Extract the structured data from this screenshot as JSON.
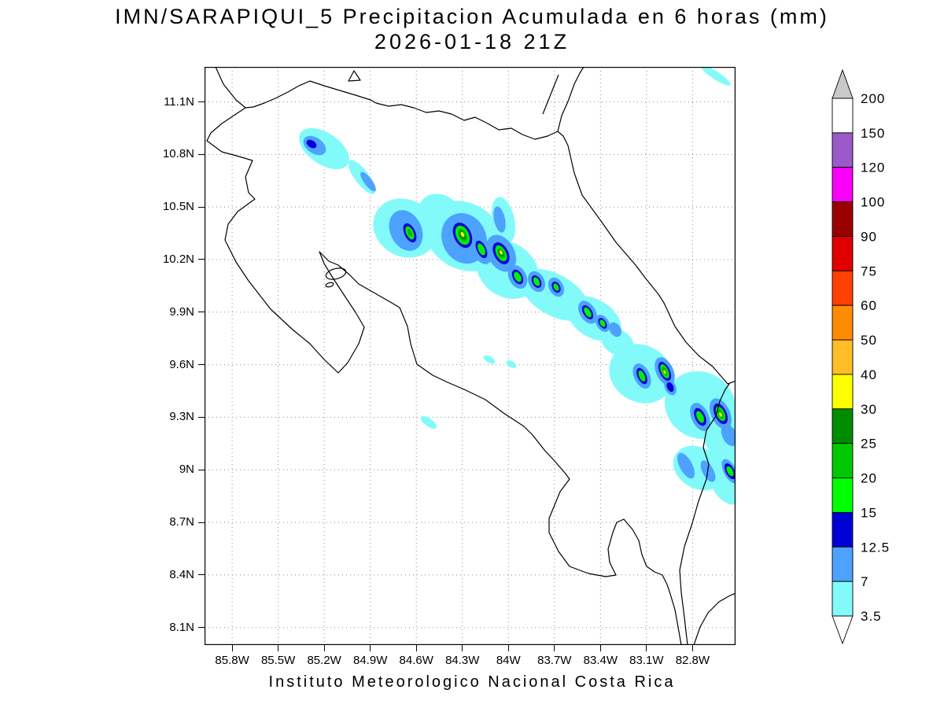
{
  "title": {
    "line1": "IMN/SARAPIQUI_5 Precipitacion Acumulada en 6 horas (mm)",
    "line2": "2026-01-18 21Z"
  },
  "caption": "Instituto Meteorologico Nacional Costa Rica",
  "axes": {
    "y_ticks": [
      "11.1N",
      "10.8N",
      "10.5N",
      "10.2N",
      "9.9N",
      "9.6N",
      "9.3N",
      "9N",
      "8.7N",
      "8.4N",
      "8.1N"
    ],
    "x_ticks": [
      "85.8W",
      "85.5W",
      "85.2W",
      "84.9W",
      "84.6W",
      "84.3W",
      "84W",
      "83.7W",
      "83.4W",
      "83.1W",
      "82.8W"
    ]
  },
  "colorbar": {
    "unit": "mm",
    "arrow_top": {
      "meaning": "> 200",
      "color": "#c9c9c9"
    },
    "arrow_bottom": {
      "meaning": "< 3.5",
      "color": "#ffffff"
    },
    "stops_top_to_bottom": [
      {
        "value": "200",
        "color_below": "#ffffff"
      },
      {
        "value": "150",
        "color_below": "#9b59c9"
      },
      {
        "value": "120",
        "color_below": "#fa00fa"
      },
      {
        "value": "100",
        "color_below": "#9a0000"
      },
      {
        "value": "90",
        "color_below": "#e00000"
      },
      {
        "value": "75",
        "color_below": "#ff4000"
      },
      {
        "value": "60",
        "color_below": "#ff8c00"
      },
      {
        "value": "50",
        "color_below": "#ffbe28"
      },
      {
        "value": "40",
        "color_below": "#ffff00"
      },
      {
        "value": "30",
        "color_below": "#008c00"
      },
      {
        "value": "25",
        "color_below": "#00c800"
      },
      {
        "value": "20",
        "color_below": "#00ff00"
      },
      {
        "value": "15",
        "color_below": "#0000d5"
      },
      {
        "value": "12.5",
        "color_below": "#4da2ff"
      },
      {
        "value": "7",
        "color_below": "#82fafa"
      },
      {
        "value": "3.5",
        "color_below": null
      }
    ]
  },
  "map": {
    "region": "Costa Rica",
    "shading_levels_mm": [
      3.5,
      7,
      12.5,
      15,
      20,
      25,
      30,
      40,
      50,
      60,
      75,
      90,
      100,
      120,
      150,
      200
    ]
  }
}
